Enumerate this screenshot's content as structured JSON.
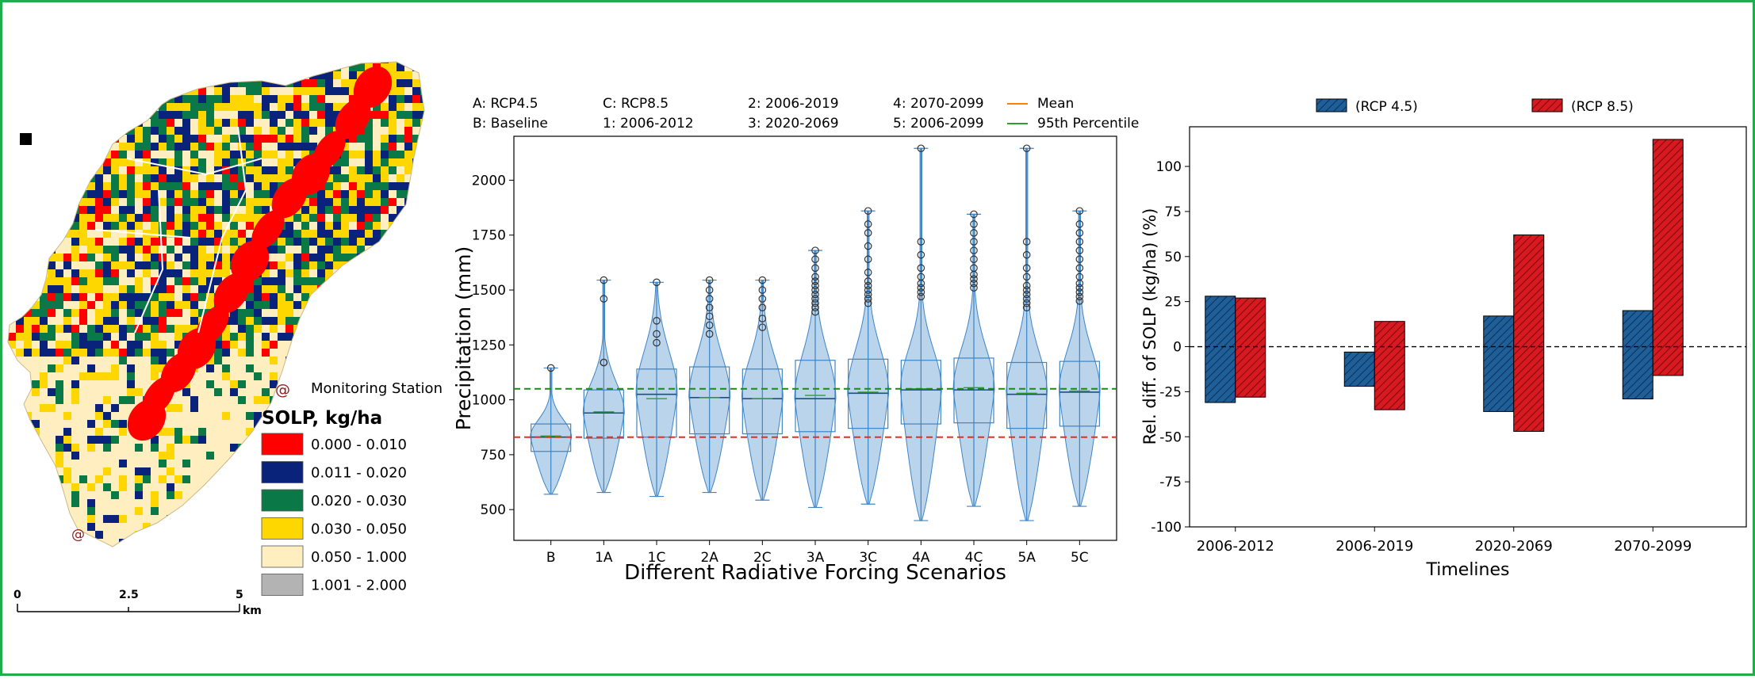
{
  "colors": {
    "frame_border": "#1fae4b",
    "rcp45": "#1f5f99",
    "rcp85": "#d71920",
    "violin_fill": "#a9c9e6",
    "violin_edge": "#3d85c6",
    "mean_line_color": "#ff7f0e",
    "p95_line_color": "#2ca02c",
    "baseline_mean_dash": "#e03020",
    "p95_dash": "#1a8a1a"
  },
  "map": {
    "north_marker_icon": "north-square-icon",
    "station_label": "Monitoring Station",
    "legend_title": "SOLP, kg/ha",
    "legend_items": [
      {
        "label": "0.000 - 0.010",
        "color": "#ff0000"
      },
      {
        "label": "0.011 - 0.020",
        "color": "#0a237a"
      },
      {
        "label": "0.020 - 0.030",
        "color": "#0b7848"
      },
      {
        "label": "0.030 - 0.050",
        "color": "#ffd700"
      },
      {
        "label": "0.050 - 1.000",
        "color": "#ffeec0"
      },
      {
        "label": "1.001 - 2.000",
        "color": "#b3b3b3"
      }
    ],
    "scale_ticks": [
      "0",
      "2.5",
      "5"
    ],
    "scale_unit": "km"
  },
  "violin_legend": {
    "col1": [
      "A: RCP4.5",
      "B: Baseline"
    ],
    "col2": [
      "C: RCP8.5",
      "1: 2006-2012"
    ],
    "col3": [
      "2: 2006-2019",
      "3: 2020-2069"
    ],
    "col4": [
      "4: 2070-2099",
      "5: 2006-2099"
    ],
    "mean_label": "Mean",
    "p95_label": "95th Percentile"
  },
  "chart_data": [
    {
      "type": "box-violin",
      "xlabel": "Different Radiative Forcing Scenarios",
      "ylabel": "Precipitation (mm)",
      "ylim": [
        360,
        2200
      ],
      "yticks": [
        500,
        750,
        1000,
        1250,
        1500,
        1750,
        2000
      ],
      "categories": [
        "B",
        "1A",
        "1C",
        "2A",
        "2C",
        "3A",
        "3C",
        "4A",
        "4C",
        "5A",
        "5C"
      ],
      "min": [
        570,
        578,
        560,
        578,
        543,
        510,
        525,
        450,
        515,
        450,
        515
      ],
      "q1": [
        765,
        825,
        830,
        845,
        845,
        855,
        870,
        890,
        895,
        870,
        880
      ],
      "median": [
        830,
        940,
        1025,
        1010,
        1005,
        1005,
        1030,
        1045,
        1045,
        1025,
        1035
      ],
      "q3": [
        890,
        1045,
        1140,
        1150,
        1140,
        1180,
        1185,
        1180,
        1190,
        1170,
        1175
      ],
      "max": [
        1140,
        1545,
        1535,
        1545,
        1540,
        1440,
        1440,
        1470,
        1510,
        1420,
        1450
      ],
      "mean": [
        835,
        945,
        1005,
        1010,
        1005,
        1020,
        1035,
        1050,
        1055,
        1030,
        1040
      ],
      "outliers": [
        [
          1145
        ],
        [
          1170,
          1170,
          1460,
          1545
        ],
        [
          1260,
          1300,
          1360,
          1535
        ],
        [
          1300,
          1340,
          1380,
          1420,
          1460,
          1500,
          1545
        ],
        [
          1330,
          1370,
          1420,
          1460,
          1500,
          1545
        ],
        [
          1400,
          1420,
          1440,
          1460,
          1480,
          1500,
          1520,
          1540,
          1560,
          1600,
          1640,
          1680
        ],
        [
          1440,
          1460,
          1480,
          1500,
          1520,
          1540,
          1580,
          1640,
          1700,
          1760,
          1800,
          1860
        ],
        [
          1470,
          1490,
          1510,
          1530,
          1560,
          1600,
          1660,
          1720,
          2145
        ],
        [
          1510,
          1530,
          1550,
          1570,
          1600,
          1640,
          1680,
          1720,
          1760,
          1800,
          1845
        ],
        [
          1420,
          1440,
          1460,
          1480,
          1500,
          1520,
          1560,
          1600,
          1660,
          1720,
          2145
        ],
        [
          1450,
          1470,
          1490,
          1510,
          1530,
          1560,
          1600,
          1640,
          1680,
          1720,
          1760,
          1800,
          1860
        ]
      ],
      "reference_lines": {
        "baseline_mean": 830,
        "baseline_p95": 1050
      }
    },
    {
      "type": "bar",
      "xlabel": "Timelines",
      "ylabel": "Rel. diff. of SOLP (kg/ha) (%)",
      "ylim": [
        -100,
        122
      ],
      "yticks": [
        -100,
        -75,
        -50,
        -25,
        0,
        25,
        50,
        75,
        100
      ],
      "categories": [
        "2006-2012",
        "2006-2019",
        "2020-2069",
        "2070-2099"
      ],
      "series": [
        {
          "name": "(RCP 4.5)",
          "low": [
            -31,
            -22,
            -36,
            -29
          ],
          "high": [
            28,
            -3,
            17,
            20
          ]
        },
        {
          "name": "(RCP 8.5)",
          "low": [
            -28,
            -35,
            -47,
            -16
          ],
          "high": [
            27,
            14,
            62,
            115
          ]
        }
      ],
      "zero_line": 0
    }
  ]
}
